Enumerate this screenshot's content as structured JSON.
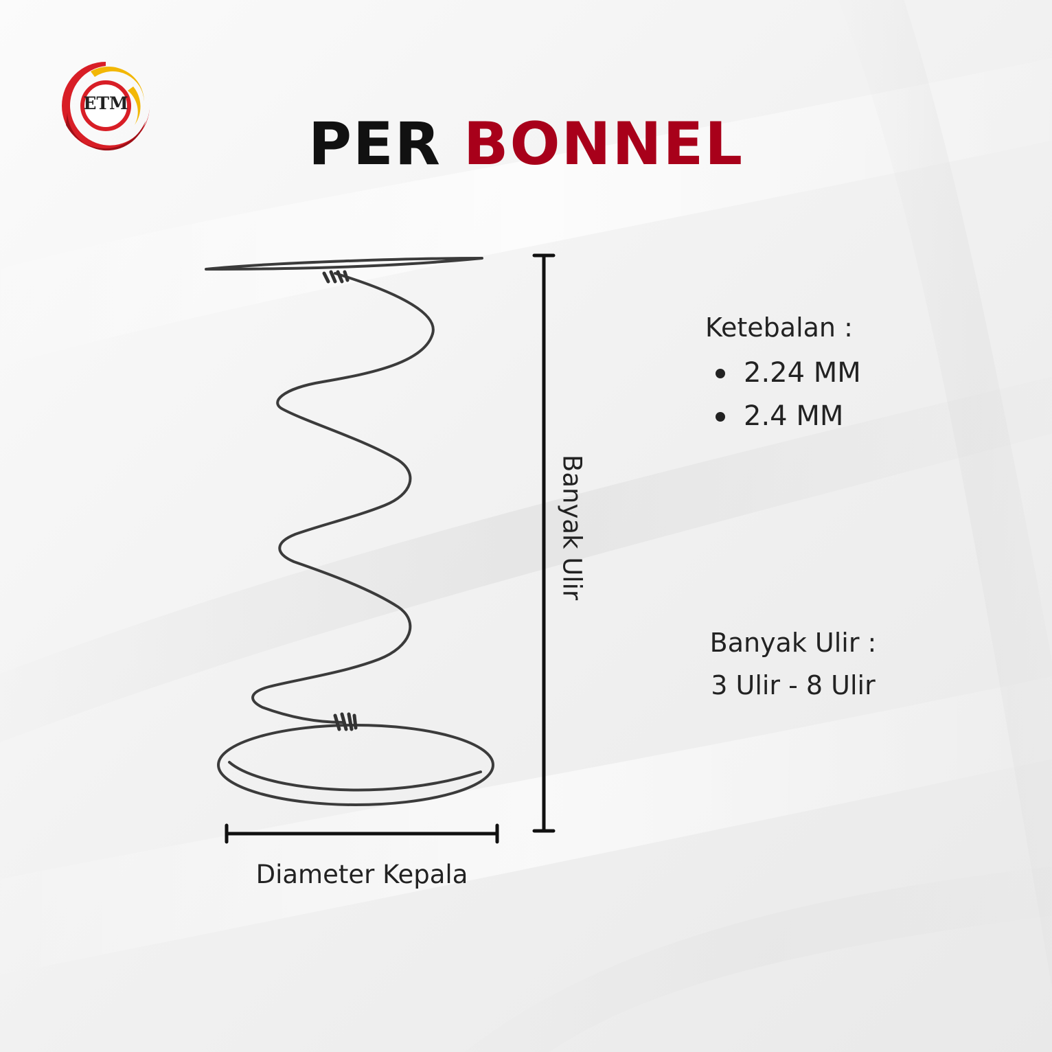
{
  "logo": {
    "text": "ETM",
    "colors": {
      "red": "#d81e26",
      "yellow": "#f2b705",
      "dark_red": "#9e0f17"
    }
  },
  "title": {
    "part1": "PER",
    "part2": "BONNEL",
    "accent_color": "#a8001a"
  },
  "diagram": {
    "height_label": "Banyak Ulir",
    "width_label": "Diameter Kepala"
  },
  "specs": {
    "thickness": {
      "heading": "Ketebalan :",
      "items": [
        "2.24 MM",
        "2.4 MM"
      ]
    },
    "turns": {
      "heading": "Banyak Ulir :",
      "value": "3 Ulir - 8 Ulir"
    }
  }
}
